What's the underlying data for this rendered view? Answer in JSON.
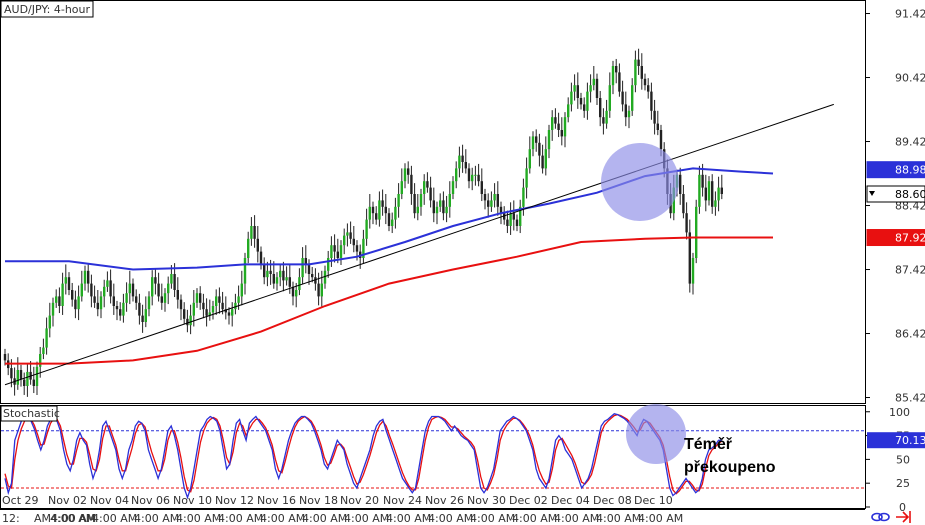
{
  "chart_data": [
    {
      "type": "candlestick",
      "title": "AUD/JPY: 4-hour",
      "y_ticks": [
        91.42,
        90.42,
        89.42,
        88.42,
        87.42,
        86.42,
        85.42
      ],
      "ylim": [
        85.35,
        91.6
      ],
      "price_tags": [
        {
          "name": "sma100",
          "value": "88.98",
          "color": "#2b31d8"
        },
        {
          "name": "last",
          "value": "88.60",
          "color": "#000000"
        },
        {
          "name": "sma200",
          "value": "87.92",
          "color": "#e81010"
        }
      ],
      "candle_colors": {
        "up": "#22aa22",
        "down": "#222222"
      },
      "closes": [
        86.0,
        85.88,
        85.72,
        85.62,
        85.85,
        85.7,
        85.6,
        85.82,
        85.7,
        85.6,
        85.9,
        86.1,
        86.2,
        86.5,
        86.7,
        86.9,
        87.0,
        86.85,
        87.2,
        87.3,
        87.1,
        86.95,
        86.8,
        87.0,
        87.2,
        87.4,
        87.2,
        87.0,
        86.9,
        86.8,
        87.0,
        87.15,
        87.25,
        87.0,
        86.85,
        86.8,
        86.7,
        86.9,
        87.05,
        87.2,
        87.0,
        86.9,
        86.7,
        86.6,
        86.8,
        87.0,
        87.3,
        87.2,
        87.0,
        86.9,
        87.05,
        87.2,
        87.35,
        87.1,
        86.95,
        86.8,
        86.65,
        86.55,
        86.7,
        86.9,
        87.05,
        86.9,
        86.8,
        86.7,
        86.75,
        86.85,
        87.0,
        86.9,
        86.8,
        86.75,
        86.7,
        86.8,
        86.9,
        87.0,
        87.2,
        87.6,
        87.9,
        88.1,
        87.9,
        87.7,
        87.5,
        87.3,
        87.4,
        87.35,
        87.2,
        87.3,
        87.4,
        87.25,
        87.3,
        87.15,
        87.0,
        87.1,
        87.3,
        87.6,
        87.5,
        87.35,
        87.3,
        87.2,
        87.0,
        87.2,
        87.4,
        87.6,
        87.8,
        87.7,
        87.6,
        87.8,
        87.95,
        88.0,
        87.9,
        87.8,
        87.7,
        87.6,
        87.9,
        88.2,
        88.4,
        88.3,
        88.2,
        88.5,
        88.4,
        88.3,
        88.1,
        88.2,
        88.4,
        88.6,
        88.8,
        89.0,
        88.9,
        88.6,
        88.3,
        88.4,
        88.6,
        88.8,
        88.7,
        88.5,
        88.3,
        88.4,
        88.5,
        88.3,
        88.4,
        88.6,
        88.8,
        89.0,
        89.2,
        89.1,
        89.0,
        88.8,
        88.9,
        88.9,
        88.8,
        88.6,
        88.5,
        88.4,
        88.5,
        88.6,
        88.4,
        88.3,
        88.2,
        88.1,
        88.3,
        88.2,
        88.1,
        88.4,
        88.7,
        89.0,
        89.3,
        89.5,
        89.4,
        89.2,
        89.0,
        89.3,
        89.6,
        89.8,
        89.7,
        89.6,
        89.5,
        89.8,
        90.0,
        90.2,
        90.3,
        90.1,
        90.0,
        89.9,
        90.2,
        90.3,
        90.4,
        90.1,
        89.8,
        89.7,
        89.9,
        90.3,
        90.6,
        90.5,
        90.2,
        90.0,
        89.8,
        89.9,
        90.3,
        90.7,
        90.6,
        90.4,
        90.3,
        90.2,
        89.9,
        89.7,
        89.6,
        89.3,
        89.0,
        88.6,
        88.3,
        88.7,
        88.9,
        88.6,
        88.3,
        88.0,
        87.2,
        87.6,
        88.4,
        88.9,
        88.7,
        88.5,
        88.8,
        88.4,
        88.5,
        88.7,
        88.6
      ],
      "trendline": {
        "from": [
          0,
          85.62
        ],
        "to": [
          259,
          90.0
        ]
      },
      "sma100": [
        [
          0,
          87.55
        ],
        [
          20,
          87.55
        ],
        [
          40,
          87.42
        ],
        [
          60,
          87.45
        ],
        [
          75,
          87.5
        ],
        [
          95,
          87.5
        ],
        [
          110,
          87.62
        ],
        [
          125,
          87.85
        ],
        [
          140,
          88.1
        ],
        [
          155,
          88.3
        ],
        [
          170,
          88.45
        ],
        [
          185,
          88.62
        ],
        [
          200,
          88.88
        ],
        [
          215,
          89.0
        ],
        [
          230,
          88.95
        ],
        [
          240,
          88.92
        ]
      ],
      "sma200": [
        [
          0,
          85.95
        ],
        [
          20,
          85.95
        ],
        [
          40,
          86.0
        ],
        [
          60,
          86.15
        ],
        [
          80,
          86.45
        ],
        [
          100,
          86.85
        ],
        [
          120,
          87.2
        ],
        [
          140,
          87.42
        ],
        [
          160,
          87.62
        ],
        [
          180,
          87.85
        ],
        [
          200,
          87.9
        ],
        [
          215,
          87.92
        ],
        [
          240,
          87.92
        ]
      ]
    },
    {
      "type": "line",
      "title": "Stochastic",
      "y_ticks": [
        100,
        75,
        50,
        25,
        0
      ],
      "ylim": [
        0,
        105
      ],
      "levels": [
        80,
        20
      ],
      "value_tag": {
        "value": "70.13",
        "color": "#2b31d8"
      },
      "k_color": "#2b31d8",
      "d_color": "#e81010",
      "k": [
        30,
        15,
        25,
        70,
        80,
        90,
        95,
        95,
        90,
        82,
        70,
        60,
        70,
        85,
        92,
        95,
        90,
        80,
        60,
        45,
        38,
        50,
        70,
        78,
        70,
        65,
        45,
        30,
        40,
        60,
        85,
        90,
        80,
        70,
        60,
        40,
        30,
        40,
        60,
        70,
        85,
        90,
        88,
        80,
        60,
        50,
        40,
        30,
        40,
        60,
        80,
        85,
        75,
        60,
        40,
        20,
        10,
        20,
        40,
        60,
        80,
        85,
        92,
        95,
        93,
        90,
        80,
        60,
        40,
        45,
        70,
        88,
        92,
        80,
        70,
        88,
        92,
        95,
        90,
        85,
        80,
        70,
        60,
        40,
        30,
        40,
        55,
        70,
        80,
        88,
        92,
        95,
        95,
        92,
        88,
        80,
        70,
        60,
        45,
        40,
        50,
        60,
        70,
        65,
        60,
        45,
        35,
        25,
        20,
        30,
        40,
        50,
        60,
        75,
        85,
        90,
        92,
        80,
        70,
        60,
        50,
        40,
        30,
        25,
        20,
        15,
        20,
        40,
        60,
        80,
        90,
        95,
        95,
        95,
        93,
        90,
        85,
        80,
        85,
        80,
        75,
        72,
        70,
        65,
        60,
        40,
        20,
        15,
        20,
        30,
        40,
        60,
        80,
        85,
        90,
        92,
        95,
        93,
        90,
        85,
        80,
        70,
        60,
        40,
        30,
        25,
        20,
        30,
        50,
        70,
        75,
        70,
        60,
        55,
        50,
        40,
        30,
        20,
        25,
        30,
        40,
        55,
        70,
        85,
        90,
        92,
        95,
        98,
        97,
        95,
        93,
        90,
        85,
        80,
        75,
        85,
        92,
        90,
        85,
        80,
        75,
        70,
        60,
        40,
        20,
        12,
        15,
        20,
        25,
        30,
        25,
        20,
        15,
        18,
        30,
        50,
        60,
        62,
        65,
        70,
        70
      ],
      "d": [
        35,
        22,
        20,
        50,
        70,
        82,
        90,
        94,
        92,
        86,
        76,
        65,
        66,
        78,
        88,
        93,
        92,
        85,
        70,
        55,
        45,
        45,
        60,
        72,
        72,
        68,
        55,
        40,
        38,
        50,
        72,
        85,
        85,
        75,
        65,
        50,
        38,
        38,
        50,
        62,
        77,
        86,
        88,
        84,
        70,
        58,
        48,
        38,
        38,
        50,
        70,
        80,
        80,
        68,
        52,
        32,
        18,
        16,
        28,
        48,
        68,
        80,
        88,
        92,
        94,
        92,
        85,
        70,
        52,
        45,
        58,
        78,
        88,
        85,
        75,
        82,
        88,
        92,
        92,
        88,
        83,
        75,
        65,
        50,
        38,
        36,
        48,
        62,
        74,
        84,
        90,
        93,
        95,
        93,
        90,
        84,
        75,
        65,
        52,
        44,
        46,
        55,
        65,
        66,
        62,
        52,
        42,
        32,
        24,
        26,
        34,
        44,
        54,
        66,
        78,
        86,
        90,
        85,
        75,
        66,
        56,
        46,
        36,
        28,
        22,
        18,
        18,
        30,
        50,
        70,
        84,
        92,
        94,
        95,
        94,
        92,
        88,
        84,
        84,
        82,
        78,
        74,
        71,
        68,
        63,
        50,
        32,
        20,
        18,
        25,
        34,
        50,
        70,
        80,
        86,
        90,
        93,
        93,
        91,
        87,
        82,
        75,
        65,
        50,
        38,
        30,
        24,
        26,
        40,
        60,
        70,
        72,
        66,
        60,
        54,
        46,
        36,
        26,
        24,
        28,
        34,
        46,
        62,
        78,
        86,
        90,
        93,
        96,
        97,
        96,
        94,
        92,
        88,
        84,
        79,
        81,
        88,
        90,
        88,
        83,
        78,
        73,
        65,
        50,
        32,
        18,
        14,
        17,
        22,
        27,
        27,
        23,
        18,
        17,
        24,
        40,
        54,
        60,
        63,
        67,
        69
      ]
    }
  ],
  "x_axis": {
    "dates": [
      "Oct 29",
      "Nov 02",
      "Nov 04",
      "Nov 06",
      "Nov 10",
      "Nov 12",
      "Nov 16",
      "Nov 18",
      "Nov 20",
      "Nov 24",
      "Nov 26",
      "Nov 30",
      "Dec 02",
      "Dec 04",
      "Dec 08",
      "Dec 10"
    ],
    "times": [
      "12:",
      "AM4:00 AM",
      "4:00 AM",
      "4:00 AM",
      "4:00 AM",
      "4:00 AM",
      "4:00 AM",
      "4:00 AM",
      "4:00 AM",
      "4:00 AM",
      "4:00 AM",
      "4:00 AM",
      "4:00 AM",
      "4:00 AM",
      "4:00 AM",
      "4:00 AM",
      "4:00 AM"
    ]
  },
  "annotation": {
    "line1": "Téměř",
    "line2": "překoupeno"
  },
  "highlights": {
    "color": "#8c8ce6"
  }
}
